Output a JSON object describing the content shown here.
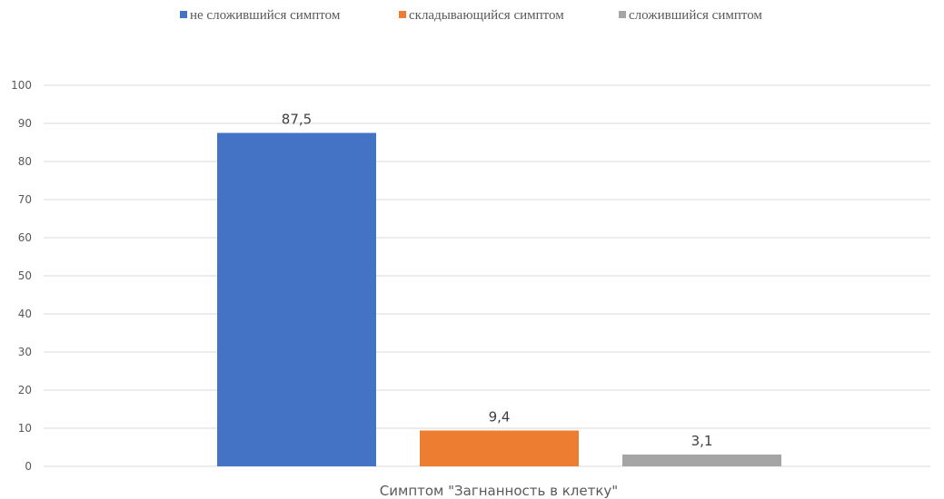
{
  "chart_data": {
    "type": "bar",
    "categories": [
      "Симптом \"Загнанность в клетку\""
    ],
    "series": [
      {
        "name": "не сложившийся симптом",
        "values": [
          87.5
        ],
        "label": "87,5",
        "color": "#4472C4"
      },
      {
        "name": "складывающийся симптом",
        "values": [
          9.4
        ],
        "label": "9,4",
        "color": "#ED7D31"
      },
      {
        "name": "сложившийся симптом",
        "values": [
          3.1
        ],
        "label": "3,1",
        "color": "#A5A5A5"
      }
    ],
    "title": "",
    "xlabel": "",
    "ylabel": "",
    "ylim": [
      0,
      100
    ],
    "yticks": [
      0,
      10,
      20,
      30,
      40,
      50,
      60,
      70,
      80,
      90,
      100
    ],
    "grid": true,
    "legend": "top-center",
    "colors": {
      "gridline": "#D9D9D9",
      "text": "#595959"
    }
  }
}
